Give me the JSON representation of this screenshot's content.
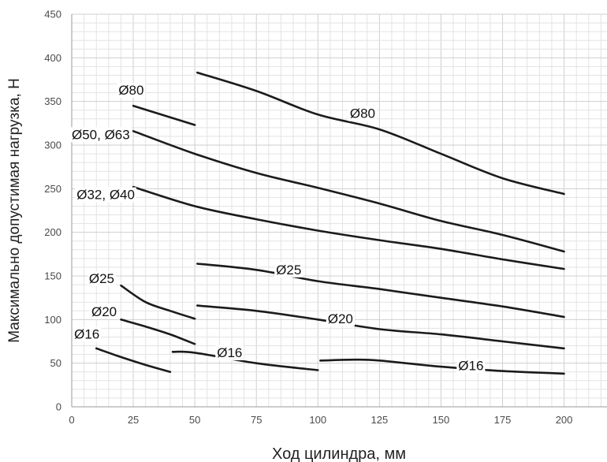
{
  "chart_data": {
    "type": "line",
    "title": "",
    "xlabel": "Ход цилиндра, мм",
    "ylabel": "Максимально допустимая нагрузка, Н",
    "xlim": [
      0,
      220
    ],
    "ylim": [
      0,
      450
    ],
    "x_ticks": [
      0,
      25,
      50,
      75,
      100,
      125,
      150,
      175,
      200
    ],
    "y_ticks": [
      0,
      50,
      100,
      150,
      200,
      250,
      300,
      350,
      400,
      450
    ],
    "grid": true,
    "series": [
      {
        "name": "Ø80",
        "label_at": [
          19,
          358
        ],
        "points": [
          [
            25,
            345
          ],
          [
            50,
            323
          ]
        ]
      },
      {
        "name": "Ø80",
        "label_at": [
          113,
          331
        ],
        "points": [
          [
            51,
            383
          ],
          [
            75,
            362
          ],
          [
            100,
            335
          ],
          [
            125,
            318
          ],
          [
            150,
            290
          ],
          [
            175,
            262
          ],
          [
            200,
            244
          ]
        ]
      },
      {
        "name": "Ø50, Ø63",
        "label_at": [
          0,
          307
        ],
        "points": [
          [
            25,
            316
          ],
          [
            50,
            290
          ],
          [
            75,
            268
          ],
          [
            100,
            251
          ],
          [
            125,
            233
          ],
          [
            150,
            213
          ],
          [
            175,
            197
          ],
          [
            200,
            178
          ]
        ]
      },
      {
        "name": "Ø32, Ø40",
        "label_at": [
          2,
          238
        ],
        "points": [
          [
            25,
            252
          ],
          [
            50,
            230
          ],
          [
            75,
            215
          ],
          [
            100,
            202
          ],
          [
            125,
            191
          ],
          [
            150,
            181
          ],
          [
            175,
            169
          ],
          [
            200,
            158
          ]
        ]
      },
      {
        "name": "Ø25",
        "label_at": [
          83,
          152
        ],
        "points": [
          [
            51,
            164
          ],
          [
            75,
            157
          ],
          [
            100,
            144
          ],
          [
            125,
            135
          ],
          [
            150,
            125
          ],
          [
            175,
            115
          ],
          [
            200,
            103
          ]
        ]
      },
      {
        "name": "Ø25",
        "label_at": [
          7,
          142
        ],
        "points": [
          [
            20,
            139
          ],
          [
            30,
            120
          ],
          [
            40,
            110
          ],
          [
            50,
            101
          ]
        ]
      },
      {
        "name": "Ø20",
        "label_at": [
          104,
          96
        ],
        "points": [
          [
            51,
            116
          ],
          [
            75,
            110
          ],
          [
            100,
            100
          ],
          [
            125,
            89
          ],
          [
            150,
            83
          ],
          [
            175,
            75
          ],
          [
            200,
            67
          ]
        ]
      },
      {
        "name": "Ø20",
        "label_at": [
          8,
          104
        ],
        "points": [
          [
            20,
            100
          ],
          [
            30,
            92
          ],
          [
            40,
            83
          ],
          [
            50,
            72
          ]
        ]
      },
      {
        "name": "Ø16",
        "label_at": [
          59,
          57
        ],
        "points": [
          [
            41,
            63
          ],
          [
            50,
            62
          ],
          [
            75,
            50
          ],
          [
            100,
            42
          ]
        ]
      },
      {
        "name": "Ø16",
        "label_at": [
          1,
          78
        ],
        "points": [
          [
            10,
            67
          ],
          [
            20,
            57
          ],
          [
            30,
            48
          ],
          [
            40,
            40
          ]
        ]
      },
      {
        "name": "Ø16",
        "label_at": [
          157,
          42
        ],
        "points": [
          [
            101,
            53
          ],
          [
            115,
            54
          ],
          [
            125,
            53
          ],
          [
            150,
            46
          ],
          [
            175,
            41
          ],
          [
            200,
            38
          ]
        ]
      }
    ]
  }
}
